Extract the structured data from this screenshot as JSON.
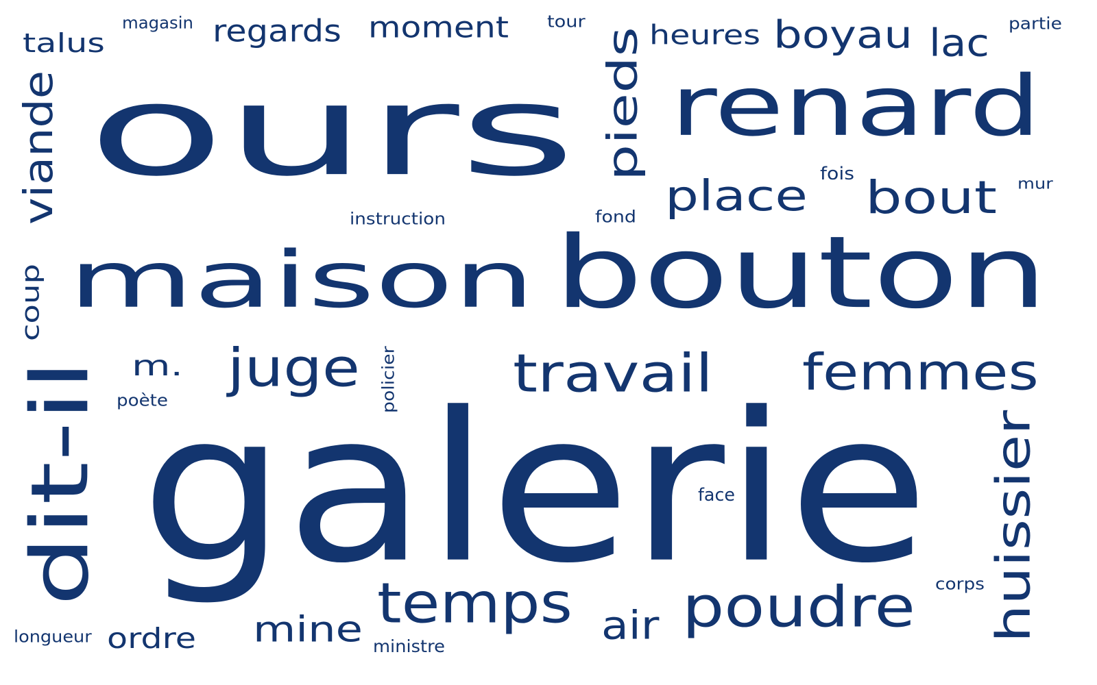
{
  "color": "#13356f",
  "words": [
    "ours",
    "galerie",
    "bouton",
    "maison",
    "renard",
    "dit-il",
    "poudre",
    "temps",
    "travail",
    "femmes",
    "huissier",
    "pieds",
    "place",
    "bout",
    "juge",
    "boyau",
    "viande",
    "mine",
    "air",
    "lac",
    "moment",
    "regards",
    "talus",
    "heures",
    "ordre",
    "m.",
    "coup",
    "instruction",
    "magasin",
    "tour",
    "partie",
    "fois",
    "mur",
    "fond",
    "poète",
    "policier",
    "face",
    "corps",
    "longueur",
    "ministre"
  ]
}
